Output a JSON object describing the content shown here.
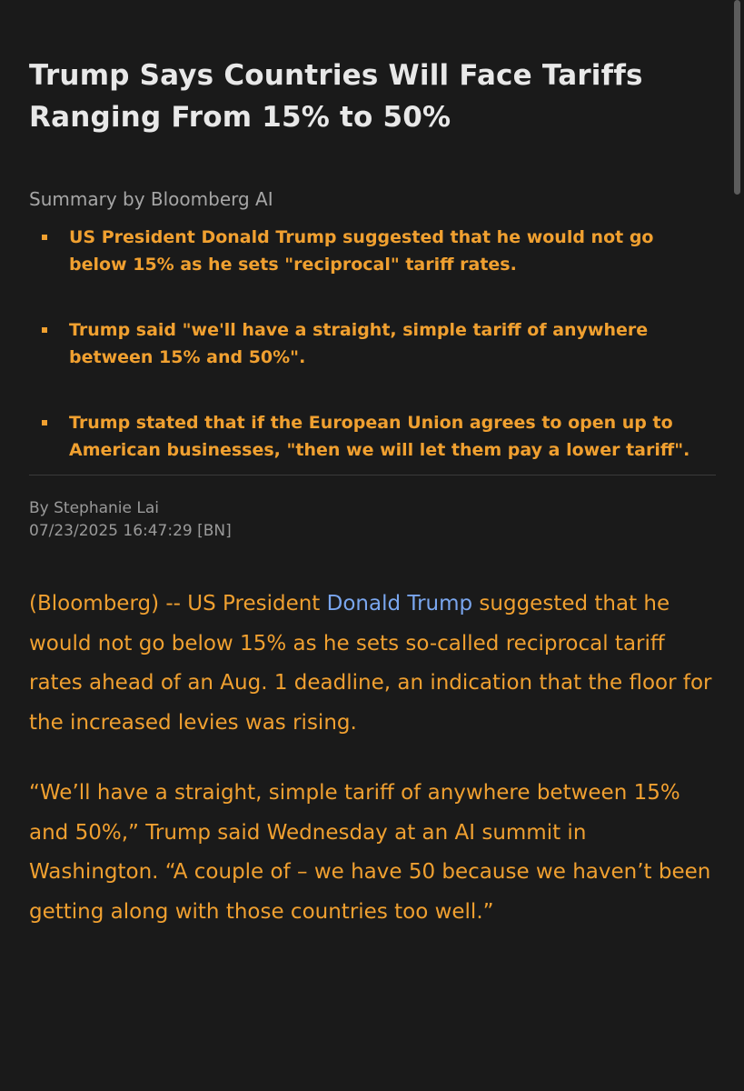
{
  "article": {
    "headline": "Trump Says Countries Will Face Tariffs Ranging From 15% to 50%",
    "summary_label": "Summary by Bloomberg AI",
    "summary_points": [
      "US President Donald Trump suggested that he would not go below 15% as he sets \"reciprocal\" tariff rates.",
      "Trump said \"we'll have a straight, simple tariff of anywhere between 15% and 50%\".",
      "Trump stated that if the European Union agrees to open up to American businesses, \"then we will let them pay a lower tariff\"."
    ],
    "byline": "By Stephanie Lai",
    "timestamp": "07/23/2025 16:47:29 [BN]",
    "body": {
      "p1_before": "(Bloomberg) -- US President ",
      "p1_link": "Donald Trump",
      "p1_after": " suggested that he would not go below 15% as he sets so-called reciprocal tariff rates ahead of an Aug. 1 deadline, an indication that the floor for the increased levies was rising.",
      "p2": "“We’ll have a straight, simple tariff of anywhere between 15% and 50%,” Trump said Wednesday at an AI summit in Washington. “A couple of – we have 50 because we haven’t been getting along with those countries too well.”"
    }
  },
  "colors": {
    "background": "#1a1a1a",
    "headline": "#e8e8e8",
    "accent_orange": "#f0a030",
    "link_blue": "#7aa6ee",
    "meta_gray": "#9a9a9a"
  }
}
